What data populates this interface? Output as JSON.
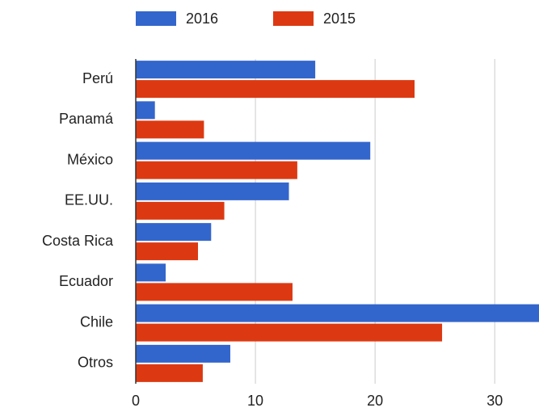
{
  "chart_data": {
    "type": "bar",
    "orientation": "horizontal",
    "categories": [
      "Perú",
      "Panamá",
      "México",
      "EE.UU.",
      "Costa Rica",
      "Ecuador",
      "Chile",
      "Otros"
    ],
    "series": [
      {
        "name": "2016",
        "color": "#3366cc",
        "values": [
          15.0,
          1.6,
          19.6,
          12.8,
          6.3,
          2.5,
          34,
          7.9
        ]
      },
      {
        "name": "2015",
        "color": "#dc3912",
        "values": [
          23.3,
          5.7,
          13.5,
          7.4,
          5.2,
          13.1,
          25.6,
          5.6
        ]
      }
    ],
    "xlim": [
      0,
      33.7
    ],
    "xticks": [
      0,
      10,
      20,
      30
    ],
    "grid": true,
    "legend": "top"
  }
}
